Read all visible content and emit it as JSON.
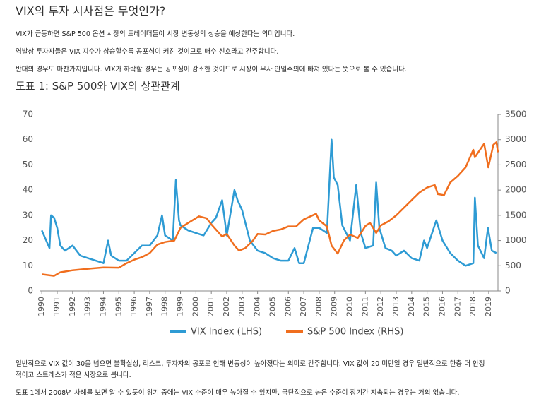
{
  "title": "VIX의 투자 시사점은 무엇인가?",
  "paragraphs": [
    "VIX가 급등하면 S&P 500 옵션 시장의 트레이더들이 시장 변동성의 상승을 예상한다는 의미입니다.",
    "역발상 투자자들은 VIX 지수가 상승할수록 공포심이 커진 것이므로 매수 신호라고 간주합니다.",
    "반대의 경우도 마찬가지입니다. VIX가 하락할 경우는 공포심이 감소한 것이므로 시장이 무사 안일주의에 빠져 있다는 뜻으로 볼 수 있습니다."
  ],
  "figure_title": "도표 1: S&P 500와 VIX의 상관관계",
  "chart_data": {
    "type": "line",
    "xlim": [
      1989.9,
      2019.6
    ],
    "xticks": [
      1990,
      1991,
      1992,
      1993,
      1994,
      1995,
      1996,
      1997,
      1998,
      1999,
      2000,
      2001,
      2002,
      2003,
      2004,
      2005,
      2006,
      2007,
      2008,
      2009,
      2010,
      2011,
      2012,
      2013,
      2014,
      2015,
      2016,
      2017,
      2018,
      2019
    ],
    "ylim": [
      0,
      70
    ],
    "yticks": [
      0,
      10,
      20,
      30,
      40,
      50,
      60,
      70
    ],
    "y2lim": [
      0,
      3500
    ],
    "y2ticks": [
      0,
      500,
      1000,
      1500,
      2000,
      2500,
      3000,
      3500
    ],
    "legend": "bottom",
    "series": [
      {
        "name": "VIX Index (LHS)",
        "color": "#2e9bd4",
        "x": [
          1990.0,
          1990.5,
          1990.6,
          1990.8,
          1991.0,
          1991.2,
          1991.5,
          1992.0,
          1992.5,
          1993.0,
          1993.5,
          1994.0,
          1994.3,
          1994.5,
          1995.0,
          1995.5,
          1996.0,
          1996.5,
          1997.0,
          1997.5,
          1997.8,
          1998.0,
          1998.5,
          1998.7,
          1998.9,
          1999.0,
          1999.5,
          2000.0,
          2000.5,
          2001.0,
          2001.3,
          2001.7,
          2002.0,
          2002.5,
          2002.7,
          2003.0,
          2003.5,
          2004.0,
          2004.5,
          2005.0,
          2005.5,
          2006.0,
          2006.4,
          2006.7,
          2007.0,
          2007.6,
          2008.0,
          2008.5,
          2008.8,
          2008.95,
          2009.2,
          2009.5,
          2010.0,
          2010.4,
          2010.7,
          2011.0,
          2011.5,
          2011.7,
          2011.9,
          2012.3,
          2012.7,
          2013.0,
          2013.5,
          2014.0,
          2014.5,
          2014.8,
          2015.0,
          2015.6,
          2016.0,
          2016.5,
          2017.0,
          2017.5,
          2018.0,
          2018.1,
          2018.3,
          2018.7,
          2018.95,
          2019.2,
          2019.5
        ],
        "values": [
          24,
          17,
          30,
          29,
          25,
          18,
          16,
          18,
          14,
          13,
          12,
          11,
          20,
          14,
          12,
          12,
          15,
          18,
          18,
          22,
          30,
          22,
          20,
          44,
          28,
          26,
          24,
          23,
          22,
          27,
          29,
          36,
          22,
          40,
          36,
          32,
          20,
          16,
          15,
          13,
          12,
          12,
          17,
          11,
          11,
          25,
          25,
          23,
          60,
          45,
          42,
          26,
          20,
          42,
          23,
          17,
          18,
          43,
          25,
          17,
          16,
          14,
          16,
          13,
          12,
          20,
          17,
          28,
          20,
          15,
          12,
          10,
          11,
          37,
          18,
          13,
          25,
          16,
          15
        ]
      },
      {
        "name": "S&P 500 Index (RHS)",
        "color": "#f06e1e",
        "axis": "y2",
        "x": [
          1990.0,
          1990.8,
          1991.2,
          1992.0,
          1993.0,
          1994.0,
          1995.0,
          1995.5,
          1996.0,
          1996.5,
          1997.0,
          1997.5,
          1998.0,
          1998.6,
          1999.0,
          1999.5,
          2000.2,
          2000.7,
          2001.0,
          2001.7,
          2002.0,
          2002.5,
          2002.8,
          2003.2,
          2003.7,
          2004.0,
          2004.5,
          2005.0,
          2005.5,
          2006.0,
          2006.5,
          2007.0,
          2007.8,
          2008.0,
          2008.5,
          2008.8,
          2009.2,
          2009.6,
          2010.0,
          2010.5,
          2011.0,
          2011.3,
          2011.7,
          2012.0,
          2012.5,
          2013.0,
          2013.5,
          2014.0,
          2014.5,
          2015.0,
          2015.5,
          2015.7,
          2016.1,
          2016.5,
          2017.0,
          2017.5,
          2018.0,
          2018.1,
          2018.7,
          2018.97,
          2019.3,
          2019.5,
          2019.6
        ],
        "values": [
          330,
          300,
          370,
          410,
          440,
          465,
          460,
          550,
          620,
          670,
          750,
          920,
          970,
          1000,
          1250,
          1350,
          1480,
          1440,
          1320,
          1080,
          1130,
          900,
          800,
          850,
          1000,
          1130,
          1120,
          1190,
          1220,
          1280,
          1280,
          1420,
          1530,
          1400,
          1280,
          900,
          740,
          1000,
          1120,
          1050,
          1290,
          1350,
          1150,
          1300,
          1380,
          1500,
          1650,
          1800,
          1950,
          2050,
          2100,
          1920,
          1900,
          2150,
          2280,
          2450,
          2800,
          2650,
          2920,
          2450,
          2900,
          2950,
          2750
        ]
      }
    ]
  },
  "closing": [
    "일반적으로 VIX 값이 30을 넘으면 불확실성, 리스크, 투자자의 공포로 인해 변동성이 높아졌다는 의미로 간주합니다. VIX 값이 20 미만일 경우 일반적으로 한층 더 안정",
    "적이고 스트레스가 적은 시장으로 봅니다.",
    "도표 1에서 2008년 사례를 보면 알 수 있듯이 위기 중에는 VIX 수준이 매우 높아질 수 있지만, 극단적으로 높은 수준이 장기간 지속되는 경우는 거의 없습니다."
  ]
}
